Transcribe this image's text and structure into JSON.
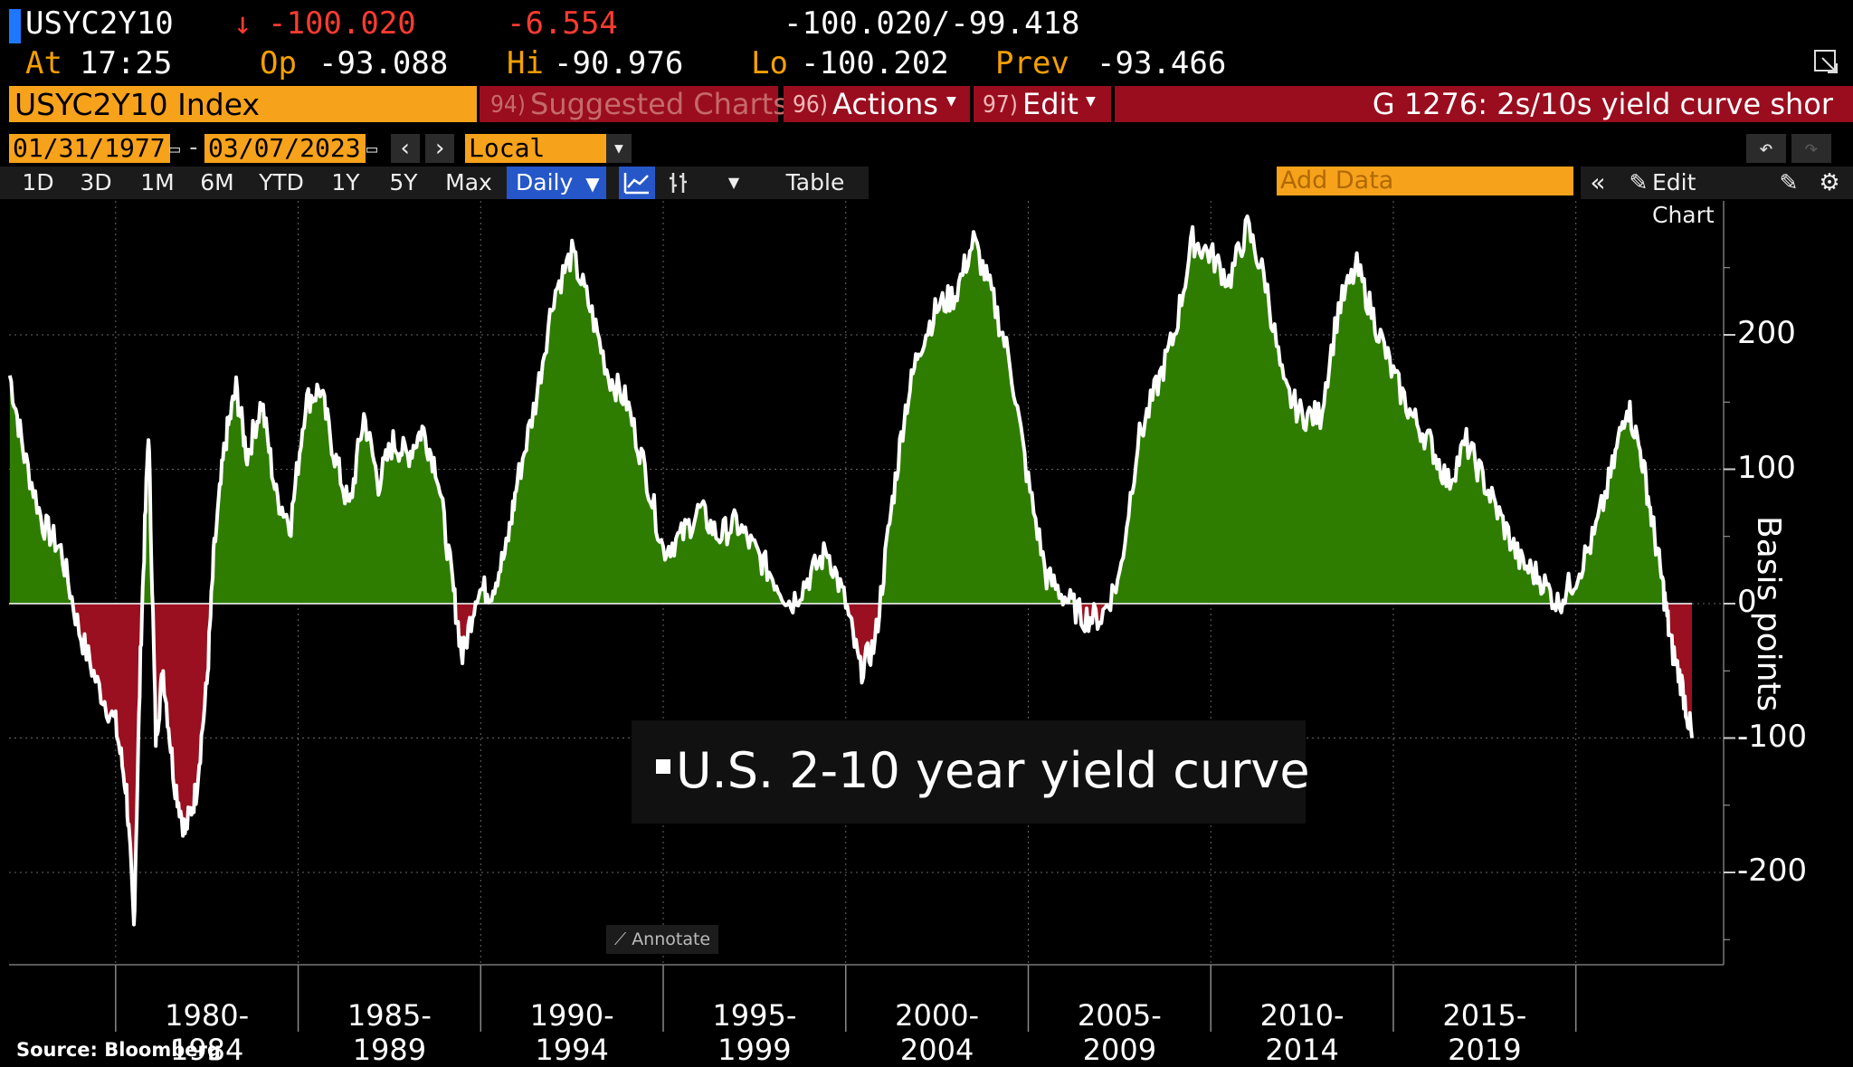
{
  "quote": {
    "ticker": "USYC2Y10",
    "arrow": "↓",
    "last": "-100.020",
    "change": "-6.554",
    "bid_ask": "-100.020/-99.418",
    "at_label": "At",
    "time": "17:25",
    "open_label": "Op",
    "open": "-93.088",
    "high_label": "Hi",
    "high": "-90.976",
    "low_label": "Lo",
    "low": "-100.202",
    "prev_label": "Prev",
    "prev": "-93.466"
  },
  "toolbar": {
    "security": "USYC2Y10 Index",
    "suggested_num": "94)",
    "suggested": "Suggested Charts",
    "actions_num": "96)",
    "actions": "Actions",
    "edit_num": "97)",
    "edit": "Edit",
    "chart_title": "G 1276: 2s/10s yield curve shor"
  },
  "range": {
    "start_date": "01/31/1977",
    "end_date": "03/07/2023",
    "currency": "Local CCY"
  },
  "periods": [
    "1D",
    "3D",
    "1M",
    "6M",
    "YTD",
    "1Y",
    "5Y",
    "Max"
  ],
  "frequency": "Daily",
  "table_label": "Table",
  "add_data_placeholder": "Add Data",
  "edit_chart_label": "Edit Chart",
  "annotate_label": "Annotate",
  "source": "Source:  Bloomberg",
  "colors": {
    "positive_fill": "#2e7d00",
    "negative_fill": "#9a1020",
    "line": "#ffffff",
    "accent": "#f7a21b"
  },
  "chart_data": {
    "type": "area",
    "series": [
      {
        "name": "U.S. 2-10 year yield curve"
      }
    ],
    "ylabel": "Basis points",
    "ylim": [
      -270,
      300
    ],
    "yticks": [
      200,
      100,
      0,
      -100,
      -200
    ],
    "x_period_labels": [
      "1980-1984",
      "1985-1989",
      "1990-1994",
      "1995-1999",
      "2000-2004",
      "2005-2009",
      "2010-2014",
      "2015-2019"
    ],
    "xlim": [
      "1977.08",
      "2023.18"
    ],
    "points": [
      [
        1977.1,
        170
      ],
      [
        1977.5,
        110
      ],
      [
        1978.0,
        60
      ],
      [
        1978.5,
        40
      ],
      [
        1979.0,
        -20
      ],
      [
        1979.5,
        -60
      ],
      [
        1980.0,
        -90
      ],
      [
        1980.3,
        -140
      ],
      [
        1980.5,
        -240
      ],
      [
        1980.7,
        -20
      ],
      [
        1980.9,
        130
      ],
      [
        1981.1,
        -100
      ],
      [
        1981.3,
        -50
      ],
      [
        1981.6,
        -130
      ],
      [
        1981.9,
        -170
      ],
      [
        1982.2,
        -140
      ],
      [
        1982.5,
        -60
      ],
      [
        1982.7,
        40
      ],
      [
        1983.0,
        120
      ],
      [
        1983.3,
        160
      ],
      [
        1983.6,
        110
      ],
      [
        1984.0,
        150
      ],
      [
        1984.4,
        80
      ],
      [
        1984.8,
        60
      ],
      [
        1985.2,
        150
      ],
      [
        1985.6,
        160
      ],
      [
        1986.0,
        110
      ],
      [
        1986.4,
        70
      ],
      [
        1986.8,
        140
      ],
      [
        1987.2,
        90
      ],
      [
        1987.6,
        120
      ],
      [
        1988.0,
        110
      ],
      [
        1988.4,
        130
      ],
      [
        1988.8,
        100
      ],
      [
        1989.2,
        20
      ],
      [
        1989.5,
        -40
      ],
      [
        1989.9,
        10
      ],
      [
        1990.3,
        10
      ],
      [
        1990.7,
        40
      ],
      [
        1991.0,
        90
      ],
      [
        1991.5,
        150
      ],
      [
        1992.0,
        230
      ],
      [
        1992.5,
        260
      ],
      [
        1993.0,
        220
      ],
      [
        1993.5,
        170
      ],
      [
        1994.0,
        150
      ],
      [
        1994.5,
        100
      ],
      [
        1995.0,
        40
      ],
      [
        1995.5,
        50
      ],
      [
        1996.0,
        70
      ],
      [
        1996.5,
        50
      ],
      [
        1997.0,
        60
      ],
      [
        1997.5,
        40
      ],
      [
        1998.0,
        20
      ],
      [
        1998.5,
        0
      ],
      [
        1999.0,
        20
      ],
      [
        1999.5,
        40
      ],
      [
        2000.0,
        0
      ],
      [
        2000.4,
        -50
      ],
      [
        2000.8,
        -30
      ],
      [
        2001.2,
        60
      ],
      [
        2001.6,
        140
      ],
      [
        2002.0,
        190
      ],
      [
        2002.5,
        220
      ],
      [
        2003.0,
        230
      ],
      [
        2003.5,
        270
      ],
      [
        2004.0,
        230
      ],
      [
        2004.5,
        180
      ],
      [
        2005.0,
        90
      ],
      [
        2005.5,
        20
      ],
      [
        2006.0,
        5
      ],
      [
        2006.5,
        -10
      ],
      [
        2007.0,
        -10
      ],
      [
        2007.5,
        20
      ],
      [
        2008.0,
        120
      ],
      [
        2008.5,
        160
      ],
      [
        2009.0,
        200
      ],
      [
        2009.5,
        270
      ],
      [
        2010.0,
        260
      ],
      [
        2010.5,
        240
      ],
      [
        2011.0,
        280
      ],
      [
        2011.5,
        240
      ],
      [
        2012.0,
        160
      ],
      [
        2012.5,
        140
      ],
      [
        2013.0,
        140
      ],
      [
        2013.5,
        220
      ],
      [
        2014.0,
        250
      ],
      [
        2014.5,
        210
      ],
      [
        2015.0,
        170
      ],
      [
        2015.5,
        140
      ],
      [
        2016.0,
        120
      ],
      [
        2016.5,
        90
      ],
      [
        2017.0,
        120
      ],
      [
        2017.5,
        90
      ],
      [
        2018.0,
        60
      ],
      [
        2018.5,
        30
      ],
      [
        2019.0,
        20
      ],
      [
        2019.5,
        0
      ],
      [
        2020.0,
        20
      ],
      [
        2020.5,
        50
      ],
      [
        2021.0,
        100
      ],
      [
        2021.4,
        150
      ],
      [
        2021.8,
        110
      ],
      [
        2022.1,
        60
      ],
      [
        2022.4,
        10
      ],
      [
        2022.6,
        -30
      ],
      [
        2022.9,
        -60
      ],
      [
        2023.18,
        -100
      ]
    ]
  }
}
